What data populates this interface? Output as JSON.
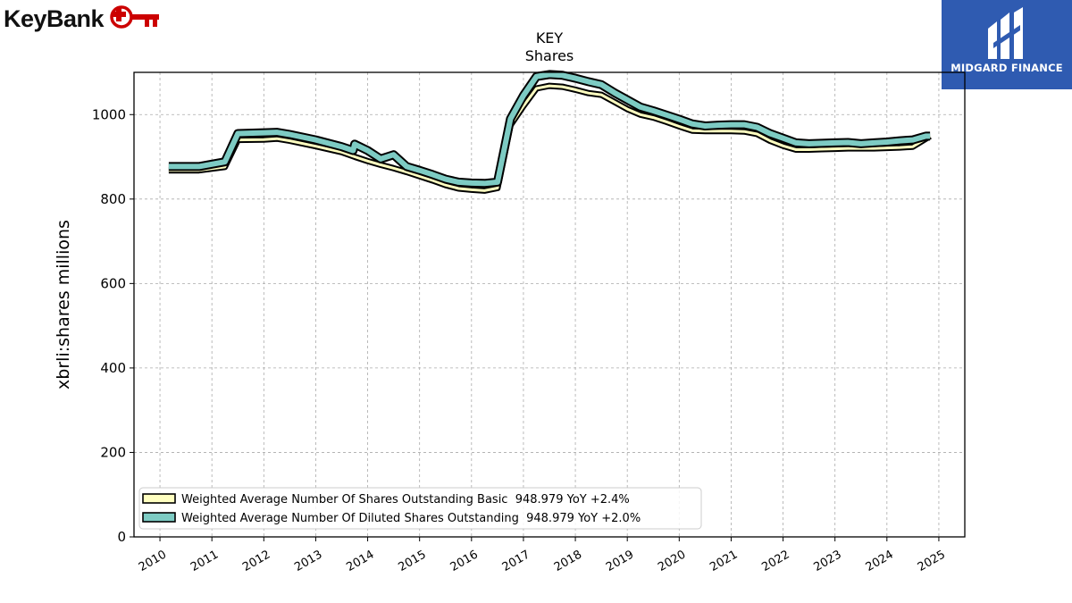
{
  "brand": {
    "name": "KeyBank",
    "key_icon": "key-icon",
    "color": "#cc0000"
  },
  "badge": {
    "text": "MIDGARD FINANCE",
    "icon": "midgard-logo-icon",
    "color": "#2f5bb1"
  },
  "chart_data": {
    "type": "area",
    "title": "KEY",
    "subtitle": "Shares",
    "xlabel": "",
    "ylabel": "xbrli:shares millions",
    "xlim": [
      2009.5,
      2025.5
    ],
    "ylim": [
      0,
      1100
    ],
    "yticks": [
      0,
      200,
      400,
      600,
      800,
      1000
    ],
    "xticks": [
      2010,
      2011,
      2012,
      2013,
      2014,
      2015,
      2016,
      2017,
      2018,
      2019,
      2020,
      2021,
      2022,
      2023,
      2024,
      2025
    ],
    "grid": true,
    "legend_position": "lower-left",
    "series": [
      {
        "name": "Weighted Average Number Of Shares Outstanding Basic",
        "legend": "Weighted Average Number Of Shares Outstanding Basic  948.979 YoY +2.4%",
        "color": "#ffffc0",
        "x": [
          2010.17,
          2010.75,
          2011.25,
          2011.5,
          2012.0,
          2012.25,
          2012.5,
          2013.0,
          2013.5,
          2013.75,
          2014.0,
          2014.25,
          2014.5,
          2014.75,
          2015.0,
          2015.25,
          2015.5,
          2015.75,
          2016.0,
          2016.25,
          2016.5,
          2016.75,
          2017.0,
          2017.25,
          2017.5,
          2017.75,
          2018.0,
          2018.25,
          2018.5,
          2018.75,
          2019.0,
          2019.25,
          2019.5,
          2019.75,
          2020.0,
          2020.25,
          2020.5,
          2020.75,
          2021.0,
          2021.25,
          2021.5,
          2021.75,
          2022.0,
          2022.25,
          2022.5,
          2022.75,
          2023.0,
          2023.25,
          2023.5,
          2023.75,
          2024.0,
          2024.25,
          2024.5,
          2024.83
        ],
        "values": [
          868,
          868,
          876,
          940,
          941,
          943,
          938,
          925,
          911,
          900,
          890,
          881,
          873,
          864,
          854,
          844,
          833,
          825,
          822,
          820,
          826,
          975,
          1020,
          1062,
          1068,
          1066,
          1059,
          1051,
          1047,
          1030,
          1013,
          1000,
          993,
          983,
          972,
          962,
          961,
          961,
          961,
          960,
          954,
          938,
          926,
          917,
          917,
          918,
          919,
          920,
          920,
          920,
          921,
          922,
          924,
          948.979
        ]
      },
      {
        "name": "Weighted Average Number Of Diluted Shares Outstanding",
        "legend": "Weighted Average Number Of Diluted Shares Outstanding  948.979 YoY +2.0%",
        "color": "#7dcbc3",
        "x": [
          2010.17,
          2010.75,
          2011.25,
          2011.5,
          2012.0,
          2012.25,
          2012.5,
          2013.0,
          2013.5,
          2013.72,
          2013.75,
          2014.0,
          2014.25,
          2014.5,
          2014.75,
          2015.0,
          2015.25,
          2015.5,
          2015.75,
          2016.0,
          2016.25,
          2016.5,
          2016.75,
          2017.0,
          2017.25,
          2017.5,
          2017.75,
          2018.0,
          2018.25,
          2018.5,
          2018.75,
          2019.0,
          2019.25,
          2019.5,
          2019.75,
          2020.0,
          2020.25,
          2020.5,
          2020.75,
          2021.0,
          2021.25,
          2021.5,
          2021.75,
          2022.0,
          2022.25,
          2022.5,
          2022.75,
          2023.0,
          2023.25,
          2023.5,
          2023.75,
          2024.0,
          2024.25,
          2024.5,
          2024.75,
          2024.83
        ],
        "values": [
          877,
          877,
          888,
          955,
          957,
          958,
          953,
          940,
          924,
          915,
          930,
          915,
          895,
          905,
          877,
          868,
          858,
          847,
          840,
          838,
          837,
          840,
          990,
          1045,
          1090,
          1095,
          1093,
          1086,
          1078,
          1071,
          1052,
          1035,
          1018,
          1009,
          999,
          989,
          978,
          973,
          975,
          976,
          976,
          970,
          955,
          944,
          933,
          931,
          932,
          933,
          934,
          931,
          933,
          935,
          938,
          940,
          949,
          948.979
        ]
      }
    ]
  }
}
